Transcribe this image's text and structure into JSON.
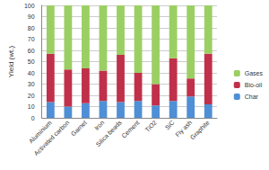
{
  "chart_data": {
    "type": "bar",
    "stacked": true,
    "grid": true,
    "legend": "right",
    "ylabel": "Yield (wt.)",
    "categories": [
      "Aluminium",
      "Activated carbon",
      "Garnet",
      "Iron",
      "Silica beads",
      "Cement",
      "TiO2",
      "SiC",
      "Fly ash",
      "Graphite"
    ],
    "series": [
      {
        "name": "Char",
        "color": "#4f8fd6",
        "values": [
          14,
          10,
          13,
          15,
          14,
          15,
          11,
          15,
          19,
          12
        ]
      },
      {
        "name": "Bio-oil",
        "color": "#c0304a",
        "values": [
          43,
          33,
          31,
          27,
          42,
          25,
          19,
          38,
          16,
          45
        ]
      },
      {
        "name": "Gases",
        "color": "#9bcf63",
        "values": [
          43,
          57,
          56,
          58,
          44,
          60,
          70,
          47,
          65,
          43
        ]
      }
    ],
    "ylim": [
      0,
      100
    ],
    "yticks": [
      0,
      10,
      20,
      30,
      40,
      50,
      60,
      70,
      80,
      90,
      100
    ]
  }
}
